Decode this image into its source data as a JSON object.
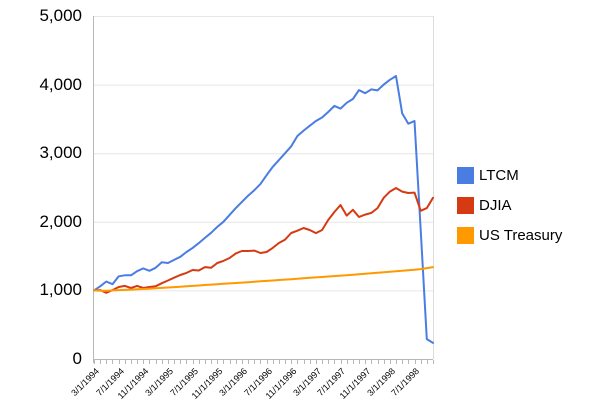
{
  "chart_data": {
    "type": "line",
    "title": "",
    "xlabel": "",
    "ylabel": "",
    "ylim": [
      0,
      5000
    ],
    "grid": true,
    "legend_position": "right",
    "y_ticks": [
      0,
      1000,
      2000,
      3000,
      4000,
      5000
    ],
    "y_tick_labels": [
      "0",
      "1,000",
      "2,000",
      "3,000",
      "4,000",
      "5,000"
    ],
    "x_tick_labels": [
      "3/1/1994",
      "7/1/1994",
      "11/1/1994",
      "3/1/1995",
      "7/1/1995",
      "11/1/1995",
      "3/1/1996",
      "7/1/1996",
      "11/1/1996",
      "3/1/1997",
      "7/1/1997",
      "11/1/1997",
      "3/1/1998",
      "7/1/1998"
    ],
    "x_tick_every_n_months": 4,
    "x": [
      "3/1/1994",
      "4/1/1994",
      "5/1/1994",
      "6/1/1994",
      "7/1/1994",
      "8/1/1994",
      "9/1/1994",
      "10/1/1994",
      "11/1/1994",
      "12/1/1994",
      "1/1/1995",
      "2/1/1995",
      "3/1/1995",
      "4/1/1995",
      "5/1/1995",
      "6/1/1995",
      "7/1/1995",
      "8/1/1995",
      "9/1/1995",
      "10/1/1995",
      "11/1/1995",
      "12/1/1995",
      "1/1/1996",
      "2/1/1996",
      "3/1/1996",
      "4/1/1996",
      "5/1/1996",
      "6/1/1996",
      "7/1/1996",
      "8/1/1996",
      "9/1/1996",
      "10/1/1996",
      "11/1/1996",
      "12/1/1996",
      "1/1/1997",
      "2/1/1997",
      "3/1/1997",
      "4/1/1997",
      "5/1/1997",
      "6/1/1997",
      "7/1/1997",
      "8/1/1997",
      "9/1/1997",
      "10/1/1997",
      "11/1/1997",
      "12/1/1997",
      "1/1/1998",
      "2/1/1998",
      "3/1/1998",
      "4/1/1998",
      "5/1/1998",
      "6/1/1998",
      "7/1/1998",
      "8/1/1998",
      "9/1/1998",
      "10/1/1998"
    ],
    "series": [
      {
        "name": "LTCM",
        "color": "#4a7de2",
        "values": [
          1000,
          1060,
          1130,
          1090,
          1205,
          1220,
          1220,
          1280,
          1320,
          1285,
          1330,
          1410,
          1400,
          1445,
          1490,
          1560,
          1620,
          1690,
          1765,
          1840,
          1925,
          2000,
          2100,
          2200,
          2290,
          2380,
          2460,
          2550,
          2680,
          2800,
          2900,
          3000,
          3100,
          3250,
          3330,
          3400,
          3470,
          3520,
          3600,
          3690,
          3650,
          3735,
          3790,
          3920,
          3875,
          3930,
          3915,
          4000,
          4070,
          4125,
          3580,
          3430,
          3470,
          1880,
          290,
          235
        ]
      },
      {
        "name": "DJIA",
        "color": "#d63a12",
        "values": [
          1000,
          1005,
          965,
          1005,
          1050,
          1065,
          1035,
          1065,
          1035,
          1050,
          1060,
          1105,
          1145,
          1185,
          1225,
          1255,
          1298,
          1290,
          1340,
          1330,
          1400,
          1430,
          1472,
          1540,
          1574,
          1574,
          1580,
          1545,
          1560,
          1620,
          1691,
          1740,
          1837,
          1870,
          1910,
          1880,
          1835,
          1880,
          2026,
          2143,
          2245,
          2090,
          2175,
          2070,
          2105,
          2130,
          2200,
          2350,
          2440,
          2493,
          2440,
          2420,
          2425,
          2160,
          2200,
          2350
        ]
      },
      {
        "name": "US Treasury",
        "color": "#ff9900",
        "values": [
          1000,
          996,
          995,
          1000,
          1005,
          1008,
          1012,
          1016,
          1020,
          1025,
          1030,
          1036,
          1042,
          1048,
          1054,
          1060,
          1066,
          1072,
          1078,
          1084,
          1090,
          1096,
          1102,
          1108,
          1114,
          1120,
          1126,
          1132,
          1138,
          1145,
          1151,
          1157,
          1163,
          1170,
          1176,
          1183,
          1189,
          1196,
          1202,
          1209,
          1216,
          1222,
          1229,
          1236,
          1243,
          1250,
          1257,
          1264,
          1271,
          1278,
          1285,
          1293,
          1300,
          1311,
          1325,
          1340
        ]
      }
    ]
  },
  "colors": {
    "background": "#ffffff",
    "gridline": "#e6e6e6",
    "axis": "#b7b7b7",
    "plot_border": "#dcdcdc",
    "label_text": "#000000"
  }
}
